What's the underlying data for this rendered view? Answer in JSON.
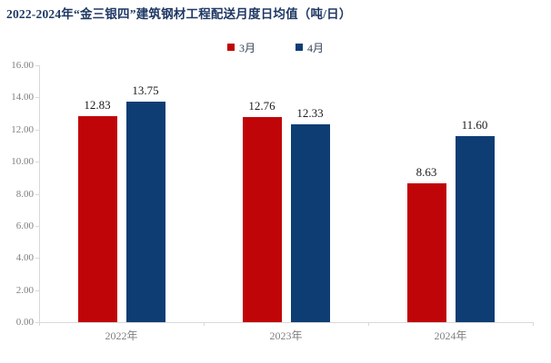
{
  "title": "2022-2024年“金三银四”建筑钢材工程配送月度日均值（吨/日）",
  "colors": {
    "title_text": "#1f3864",
    "march_red": "#c00508",
    "april_blue": "#0e3d74",
    "axis_line": "#d9d9d9",
    "tick_label": "#7f7f7f",
    "data_label": "#1a1a1a"
  },
  "chart_data": {
    "type": "bar",
    "title": "2022-2024年“金三银四”建筑钢材工程配送月度日均值（吨/日）",
    "categories": [
      "2022年",
      "2023年",
      "2024年"
    ],
    "series": [
      {
        "name": "3月",
        "color": "#c00508",
        "values": [
          12.83,
          12.76,
          8.63
        ],
        "value_labels": [
          "12.83",
          "12.76",
          "8.63"
        ]
      },
      {
        "name": "4月",
        "color": "#0e3d74",
        "values": [
          13.75,
          12.33,
          11.6
        ],
        "value_labels": [
          "13.75",
          "12.33",
          "11.60"
        ]
      }
    ],
    "xlabel": "",
    "ylabel": "",
    "ylim": [
      0,
      16
    ],
    "ytick_step": 2,
    "ytick_labels": [
      "0.00",
      "2.00",
      "4.00",
      "6.00",
      "8.00",
      "10.00",
      "12.00",
      "14.00",
      "16.00"
    ],
    "grid": false,
    "legend_position": "top-center",
    "data_labels_shown": true
  }
}
